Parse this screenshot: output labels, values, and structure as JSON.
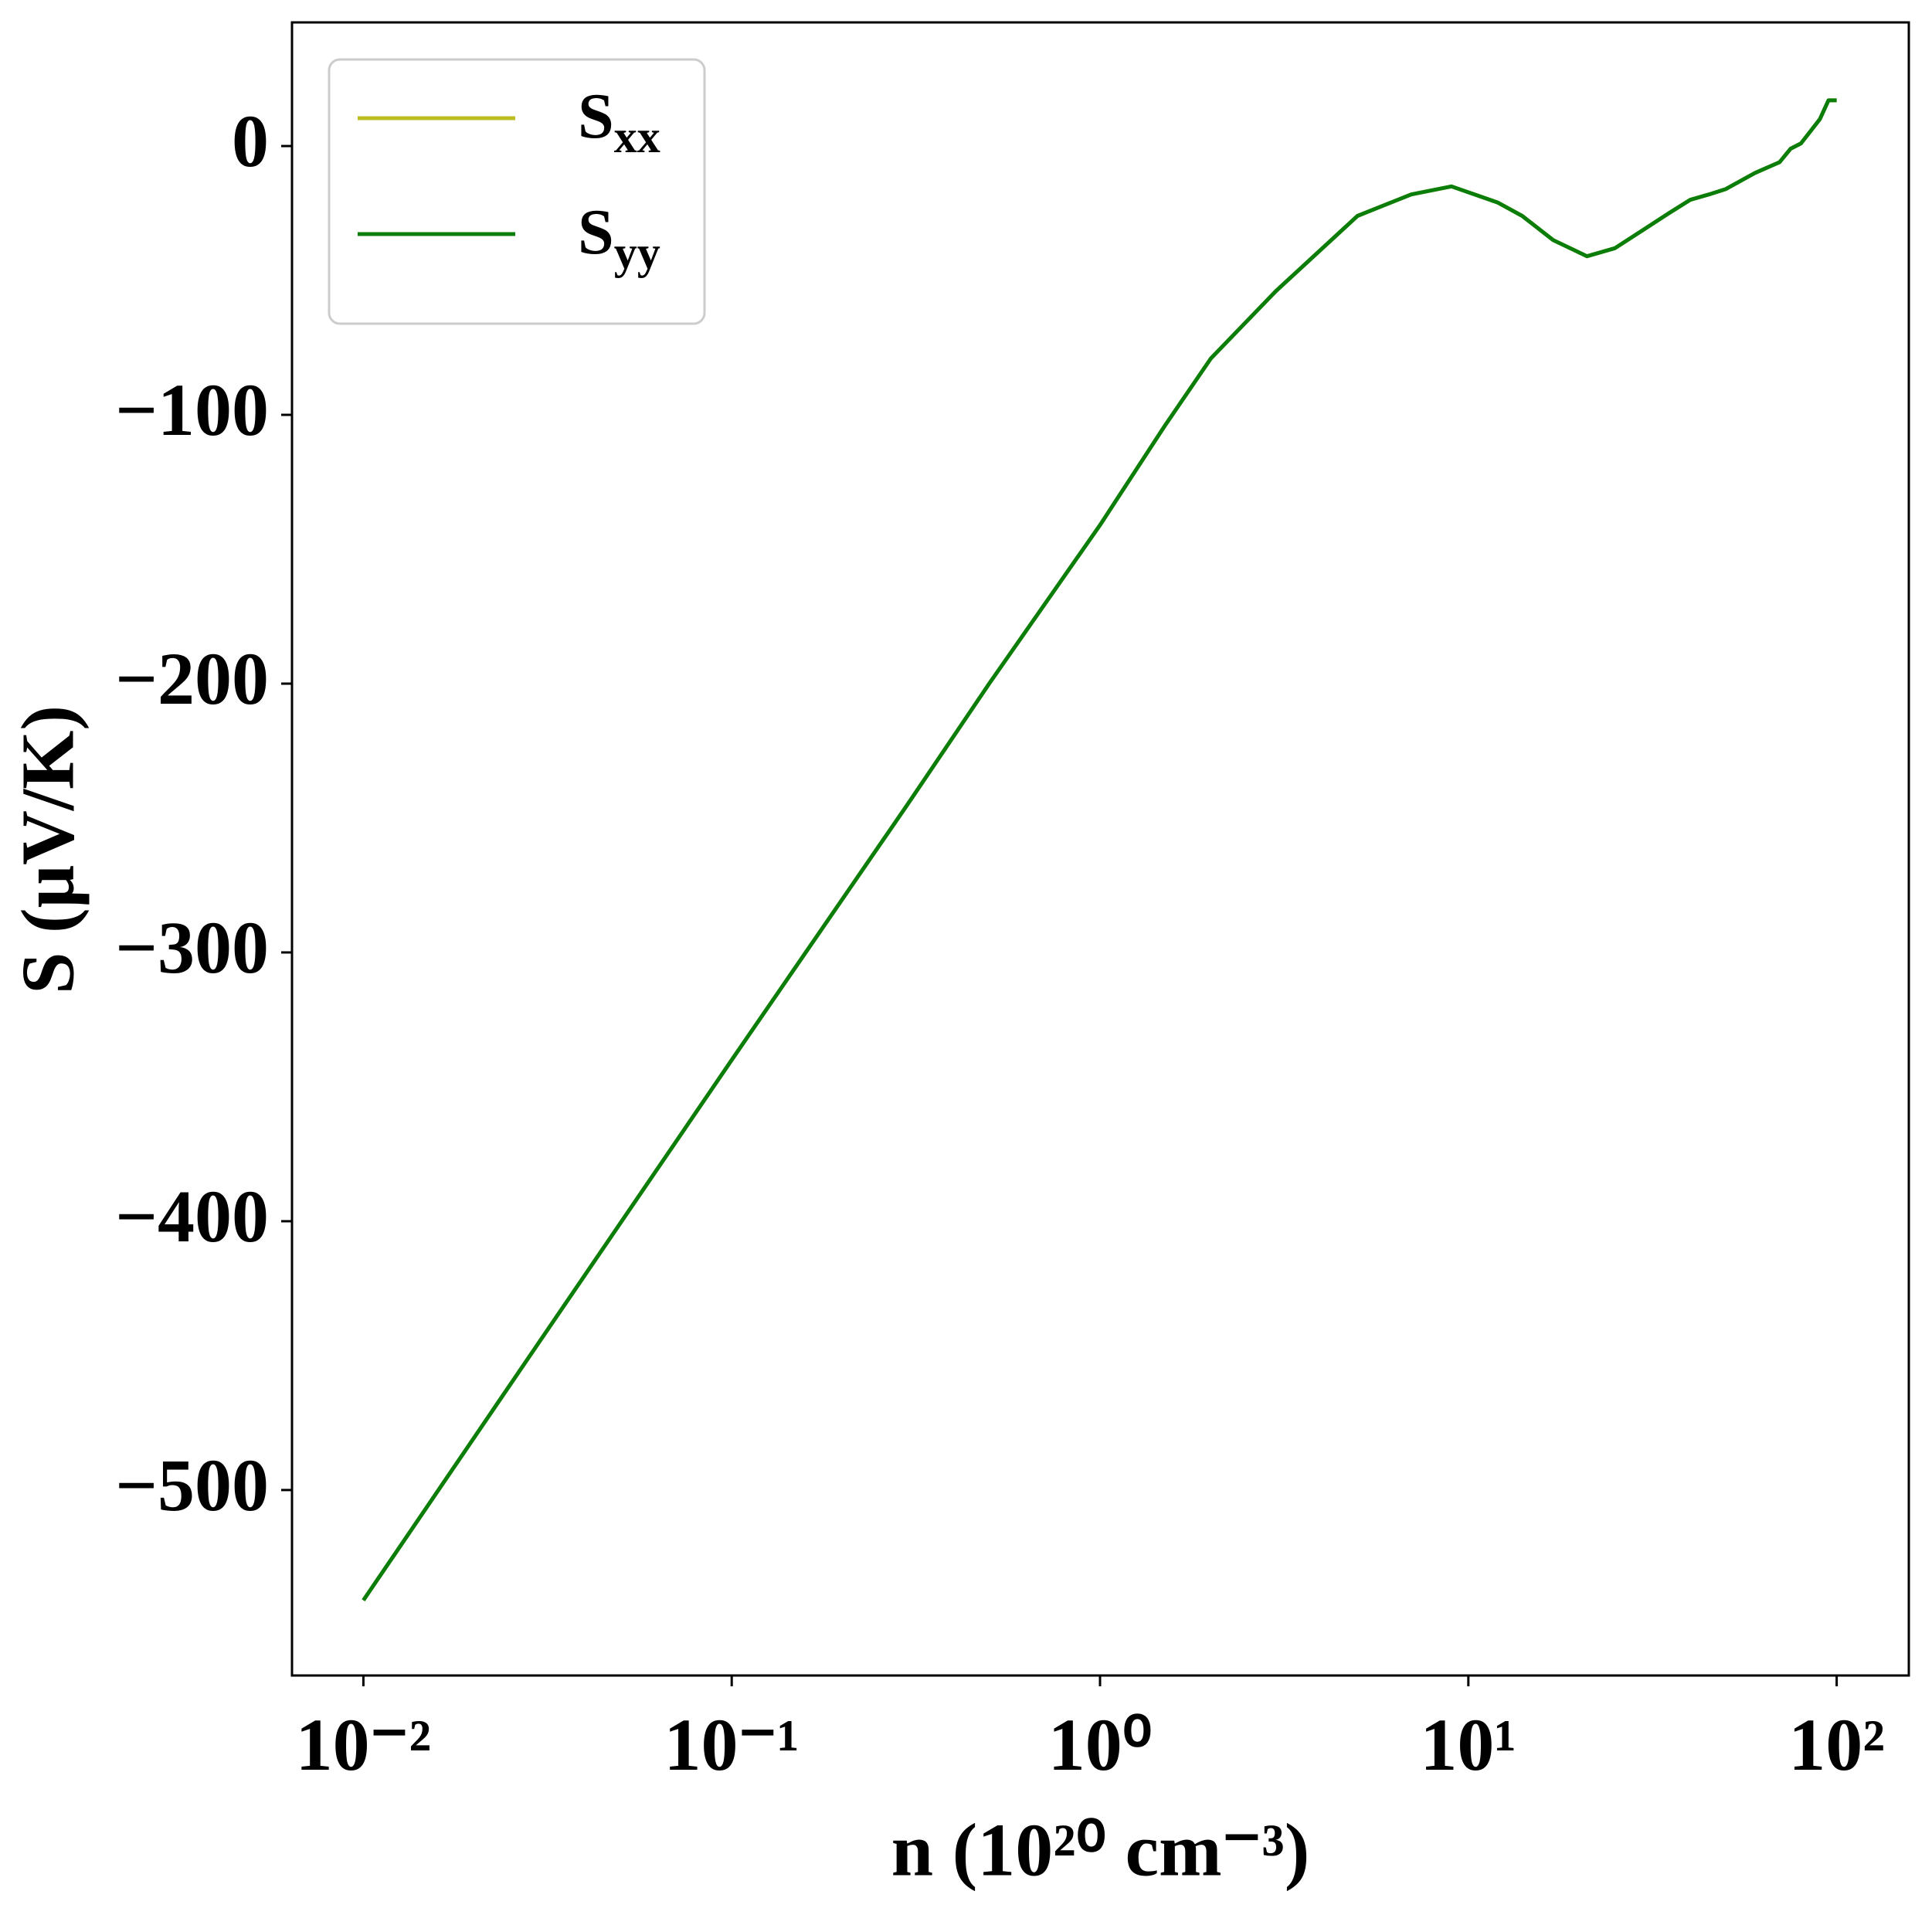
{
  "chart_data": {
    "type": "line",
    "x_label": "n (10²⁰ cm⁻³)",
    "y_label": "S (μV/K)",
    "xscale": "log",
    "x": [
      0.01,
      0.03,
      0.1,
      0.3,
      0.5,
      1,
      1.5,
      2,
      3,
      5,
      7,
      9,
      12,
      14,
      17,
      21,
      25,
      30,
      35,
      40,
      45,
      50,
      60,
      70,
      75,
      80,
      90,
      95,
      100
    ],
    "series": [
      {
        "name": "Sxx",
        "color": "#bcbd22",
        "values": [
          -541,
          -445,
          -340,
          -245,
          -200,
          -141,
          -104,
          -79,
          -54,
          -26,
          -18,
          -15,
          -21,
          -26,
          -35,
          -41,
          -38,
          -31,
          -25,
          -20,
          -18,
          -16,
          -10,
          -6,
          -1,
          1,
          10,
          17,
          17
        ]
      },
      {
        "name": "Syy",
        "color": "#0a7d0a",
        "values": [
          -541,
          -445,
          -340,
          -245,
          -200,
          -141,
          -104,
          -79,
          -54,
          -26,
          -18,
          -15,
          -21,
          -26,
          -35,
          -41,
          -38,
          -31,
          -25,
          -20,
          -18,
          -16,
          -10,
          -6,
          -1,
          1,
          10,
          17,
          17
        ]
      }
    ],
    "xlim": [
      0.0064,
      157
    ],
    "ylim": [
      -569,
      46
    ],
    "xticks": [
      {
        "value": 0.01,
        "label": "10⁻²"
      },
      {
        "value": 0.1,
        "label": "10⁻¹"
      },
      {
        "value": 1,
        "label": "10⁰"
      },
      {
        "value": 10,
        "label": "10¹"
      },
      {
        "value": 100,
        "label": "10²"
      }
    ],
    "yticks": [
      {
        "value": -500,
        "label": "−500"
      },
      {
        "value": -400,
        "label": "−400"
      },
      {
        "value": -300,
        "label": "−300"
      },
      {
        "value": -200,
        "label": "−200"
      },
      {
        "value": -100,
        "label": "−100"
      },
      0
    ],
    "legend": "upper left",
    "grid": false
  }
}
